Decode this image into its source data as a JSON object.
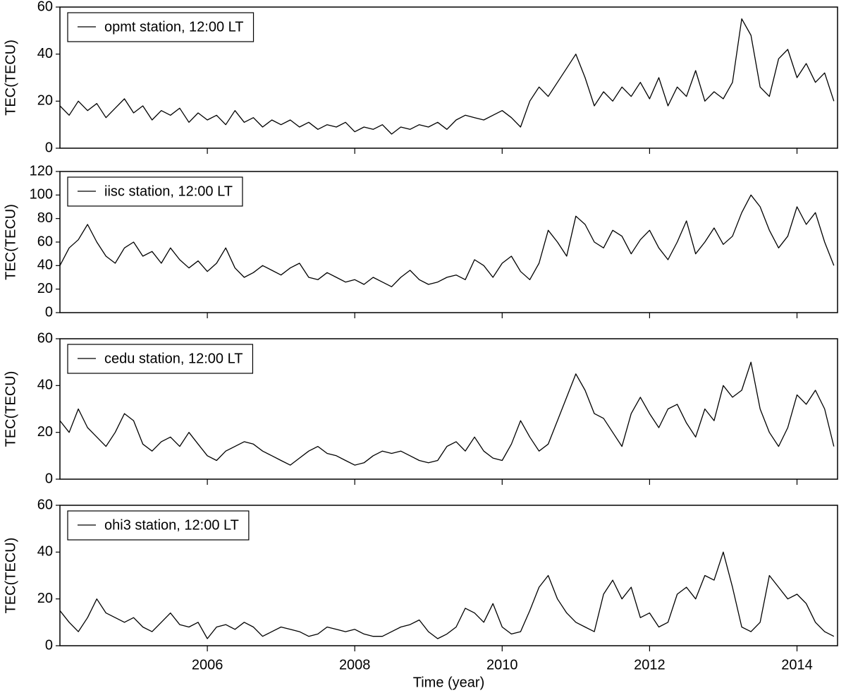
{
  "chart_data": [
    {
      "type": "line",
      "ylabel": "TEC(TECU)",
      "xlim": [
        2004,
        2014.55
      ],
      "xticks": [
        2006,
        2008,
        2010,
        2012,
        2014
      ],
      "ylim": [
        0,
        60
      ],
      "yticks": [
        0,
        20,
        40,
        60
      ],
      "legend": "upper left",
      "x": [
        2004,
        2004.125,
        2004.25,
        2004.375,
        2004.5,
        2004.625,
        2004.75,
        2004.875,
        2005,
        2005.125,
        2005.25,
        2005.375,
        2005.5,
        2005.625,
        2005.75,
        2005.875,
        2006,
        2006.125,
        2006.25,
        2006.375,
        2006.5,
        2006.625,
        2006.75,
        2006.875,
        2007,
        2007.125,
        2007.25,
        2007.375,
        2007.5,
        2007.625,
        2007.75,
        2007.875,
        2008,
        2008.125,
        2008.25,
        2008.375,
        2008.5,
        2008.625,
        2008.75,
        2008.875,
        2009,
        2009.125,
        2009.25,
        2009.375,
        2009.5,
        2009.625,
        2009.75,
        2009.875,
        2010,
        2010.125,
        2010.25,
        2010.375,
        2010.5,
        2010.625,
        2010.75,
        2010.875,
        2011,
        2011.125,
        2011.25,
        2011.375,
        2011.5,
        2011.625,
        2011.75,
        2011.875,
        2012,
        2012.125,
        2012.25,
        2012.375,
        2012.5,
        2012.625,
        2012.75,
        2012.875,
        2013,
        2013.125,
        2013.25,
        2013.375,
        2013.5,
        2013.625,
        2013.75,
        2013.875,
        2014,
        2014.125,
        2014.25,
        2014.375,
        2014.5
      ],
      "series": [
        {
          "name": "opmt station, 12:00 LT",
          "color": "#000000",
          "values": [
            18,
            14,
            20,
            16,
            19,
            13,
            17,
            21,
            15,
            18,
            12,
            16,
            14,
            17,
            11,
            15,
            12,
            14,
            10,
            16,
            11,
            13,
            9,
            12,
            10,
            12,
            9,
            11,
            8,
            10,
            9,
            11,
            7,
            9,
            8,
            10,
            6,
            9,
            8,
            10,
            9,
            11,
            8,
            12,
            14,
            13,
            12,
            14,
            16,
            13,
            9,
            20,
            26,
            22,
            28,
            34,
            40,
            30,
            18,
            24,
            20,
            26,
            22,
            28,
            21,
            30,
            18,
            26,
            22,
            33,
            20,
            24,
            21,
            28,
            55,
            48,
            26,
            22,
            38,
            42,
            30,
            36,
            28,
            32,
            20
          ]
        }
      ]
    },
    {
      "type": "line",
      "ylabel": "TEC(TECU)",
      "xlim": [
        2004,
        2014.55
      ],
      "xticks": [
        2006,
        2008,
        2010,
        2012,
        2014
      ],
      "ylim": [
        0,
        120
      ],
      "yticks": [
        0,
        20,
        40,
        60,
        80,
        100,
        120
      ],
      "legend": "upper left",
      "x": [
        2004,
        2004.125,
        2004.25,
        2004.375,
        2004.5,
        2004.625,
        2004.75,
        2004.875,
        2005,
        2005.125,
        2005.25,
        2005.375,
        2005.5,
        2005.625,
        2005.75,
        2005.875,
        2006,
        2006.125,
        2006.25,
        2006.375,
        2006.5,
        2006.625,
        2006.75,
        2006.875,
        2007,
        2007.125,
        2007.25,
        2007.375,
        2007.5,
        2007.625,
        2007.75,
        2007.875,
        2008,
        2008.125,
        2008.25,
        2008.375,
        2008.5,
        2008.625,
        2008.75,
        2008.875,
        2009,
        2009.125,
        2009.25,
        2009.375,
        2009.5,
        2009.625,
        2009.75,
        2009.875,
        2010,
        2010.125,
        2010.25,
        2010.375,
        2010.5,
        2010.625,
        2010.75,
        2010.875,
        2011,
        2011.125,
        2011.25,
        2011.375,
        2011.5,
        2011.625,
        2011.75,
        2011.875,
        2012,
        2012.125,
        2012.25,
        2012.375,
        2012.5,
        2012.625,
        2012.75,
        2012.875,
        2013,
        2013.125,
        2013.25,
        2013.375,
        2013.5,
        2013.625,
        2013.75,
        2013.875,
        2014,
        2014.125,
        2014.25,
        2014.375,
        2014.5
      ],
      "series": [
        {
          "name": "iisc station, 12:00 LT",
          "color": "#000000",
          "values": [
            40,
            55,
            62,
            75,
            60,
            48,
            42,
            55,
            60,
            48,
            52,
            42,
            55,
            45,
            38,
            44,
            35,
            42,
            55,
            38,
            30,
            34,
            40,
            36,
            32,
            38,
            42,
            30,
            28,
            34,
            30,
            26,
            28,
            24,
            30,
            26,
            22,
            30,
            36,
            28,
            24,
            26,
            30,
            32,
            28,
            45,
            40,
            30,
            42,
            48,
            35,
            28,
            42,
            70,
            60,
            48,
            82,
            75,
            60,
            55,
            70,
            65,
            50,
            62,
            70,
            55,
            45,
            60,
            78,
            50,
            60,
            72,
            58,
            65,
            85,
            100,
            90,
            70,
            55,
            65,
            90,
            75,
            85,
            60,
            40
          ]
        }
      ]
    },
    {
      "type": "line",
      "ylabel": "TEC(TECU)",
      "xlim": [
        2004,
        2014.55
      ],
      "xticks": [
        2006,
        2008,
        2010,
        2012,
        2014
      ],
      "ylim": [
        0,
        60
      ],
      "yticks": [
        0,
        20,
        40,
        60
      ],
      "legend": "upper left",
      "x": [
        2004,
        2004.125,
        2004.25,
        2004.375,
        2004.5,
        2004.625,
        2004.75,
        2004.875,
        2005,
        2005.125,
        2005.25,
        2005.375,
        2005.5,
        2005.625,
        2005.75,
        2005.875,
        2006,
        2006.125,
        2006.25,
        2006.375,
        2006.5,
        2006.625,
        2006.75,
        2006.875,
        2007,
        2007.125,
        2007.25,
        2007.375,
        2007.5,
        2007.625,
        2007.75,
        2007.875,
        2008,
        2008.125,
        2008.25,
        2008.375,
        2008.5,
        2008.625,
        2008.75,
        2008.875,
        2009,
        2009.125,
        2009.25,
        2009.375,
        2009.5,
        2009.625,
        2009.75,
        2009.875,
        2010,
        2010.125,
        2010.25,
        2010.375,
        2010.5,
        2010.625,
        2010.75,
        2010.875,
        2011,
        2011.125,
        2011.25,
        2011.375,
        2011.5,
        2011.625,
        2011.75,
        2011.875,
        2012,
        2012.125,
        2012.25,
        2012.375,
        2012.5,
        2012.625,
        2012.75,
        2012.875,
        2013,
        2013.125,
        2013.25,
        2013.375,
        2013.5,
        2013.625,
        2013.75,
        2013.875,
        2014,
        2014.125,
        2014.25,
        2014.375,
        2014.5
      ],
      "series": [
        {
          "name": "cedu station, 12:00 LT",
          "color": "#000000",
          "values": [
            25,
            20,
            30,
            22,
            18,
            14,
            20,
            28,
            25,
            15,
            12,
            16,
            18,
            14,
            20,
            15,
            10,
            8,
            12,
            14,
            16,
            15,
            12,
            10,
            8,
            6,
            9,
            12,
            14,
            11,
            10,
            8,
            6,
            7,
            10,
            12,
            11,
            12,
            10,
            8,
            7,
            8,
            14,
            16,
            12,
            18,
            12,
            9,
            8,
            15,
            25,
            18,
            12,
            15,
            25,
            35,
            45,
            38,
            28,
            26,
            20,
            14,
            28,
            35,
            28,
            22,
            30,
            32,
            24,
            18,
            30,
            25,
            40,
            35,
            38,
            50,
            30,
            20,
            14,
            22,
            36,
            32,
            38,
            30,
            14
          ]
        }
      ]
    },
    {
      "type": "line",
      "ylabel": "TEC(TECU)",
      "xlabel": "Time (year)",
      "xlim": [
        2004,
        2014.55
      ],
      "xticks": [
        2006,
        2008,
        2010,
        2012,
        2014
      ],
      "ylim": [
        0,
        60
      ],
      "yticks": [
        0,
        20,
        40,
        60
      ],
      "legend": "upper left",
      "x": [
        2004,
        2004.125,
        2004.25,
        2004.375,
        2004.5,
        2004.625,
        2004.75,
        2004.875,
        2005,
        2005.125,
        2005.25,
        2005.375,
        2005.5,
        2005.625,
        2005.75,
        2005.875,
        2006,
        2006.125,
        2006.25,
        2006.375,
        2006.5,
        2006.625,
        2006.75,
        2006.875,
        2007,
        2007.125,
        2007.25,
        2007.375,
        2007.5,
        2007.625,
        2007.75,
        2007.875,
        2008,
        2008.125,
        2008.25,
        2008.375,
        2008.5,
        2008.625,
        2008.75,
        2008.875,
        2009,
        2009.125,
        2009.25,
        2009.375,
        2009.5,
        2009.625,
        2009.75,
        2009.875,
        2010,
        2010.125,
        2010.25,
        2010.375,
        2010.5,
        2010.625,
        2010.75,
        2010.875,
        2011,
        2011.125,
        2011.25,
        2011.375,
        2011.5,
        2011.625,
        2011.75,
        2011.875,
        2012,
        2012.125,
        2012.25,
        2012.375,
        2012.5,
        2012.625,
        2012.75,
        2012.875,
        2013,
        2013.125,
        2013.25,
        2013.375,
        2013.5,
        2013.625,
        2013.75,
        2013.875,
        2014,
        2014.125,
        2014.25,
        2014.375,
        2014.5
      ],
      "series": [
        {
          "name": "ohi3 station, 12:00 LT",
          "color": "#000000",
          "values": [
            15,
            10,
            6,
            12,
            20,
            14,
            12,
            10,
            12,
            8,
            6,
            10,
            14,
            9,
            8,
            10,
            3,
            8,
            9,
            7,
            10,
            8,
            4,
            6,
            8,
            7,
            6,
            4,
            5,
            8,
            7,
            6,
            7,
            5,
            4,
            4,
            6,
            8,
            9,
            11,
            6,
            3,
            5,
            8,
            16,
            14,
            10,
            18,
            8,
            5,
            6,
            15,
            25,
            30,
            20,
            14,
            10,
            8,
            6,
            22,
            28,
            20,
            25,
            12,
            14,
            8,
            10,
            22,
            25,
            20,
            30,
            28,
            40,
            25,
            8,
            6,
            10,
            30,
            25,
            20,
            22,
            18,
            10,
            6,
            4
          ]
        }
      ]
    }
  ]
}
